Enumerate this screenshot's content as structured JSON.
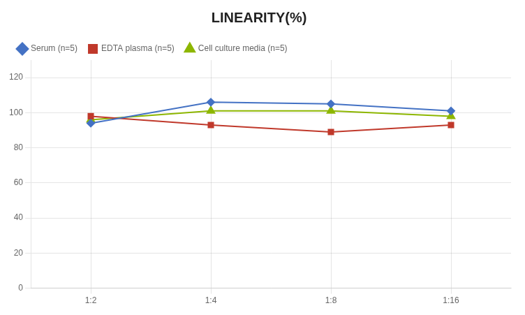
{
  "chart_data": {
    "type": "line",
    "title": "LINEARITY(%)",
    "categories": [
      "1:2",
      "1:4",
      "1:8",
      "1:16"
    ],
    "series": [
      {
        "name": "Serum (n=5)",
        "color": "#4472C4",
        "marker": "diamond",
        "values": [
          94,
          106,
          105,
          101
        ]
      },
      {
        "name": "EDTA plasma (n=5)",
        "color": "#C0392B",
        "marker": "square",
        "values": [
          98,
          93,
          89,
          93
        ]
      },
      {
        "name": "Cell culture media (n=5)",
        "color": "#8DB600",
        "marker": "triangle",
        "values": [
          96,
          101,
          101,
          98
        ]
      }
    ],
    "ylim": [
      0,
      130
    ],
    "yticks": [
      0,
      20,
      40,
      60,
      80,
      100,
      120
    ],
    "grid": true,
    "legend": "top"
  }
}
